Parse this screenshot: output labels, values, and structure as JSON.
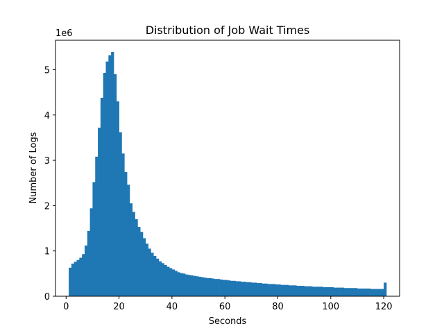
{
  "chart_data": {
    "type": "bar",
    "title": "Distribution of Job Wait Times",
    "xlabel": "Seconds",
    "ylabel": "Number of Logs",
    "y_offset_text": "1e6",
    "xlim": [
      -4,
      126
    ],
    "ylim": [
      0,
      5.65
    ],
    "y_scale_multiplier": 1000000,
    "x_ticks": [
      0,
      20,
      40,
      60,
      80,
      100,
      120
    ],
    "y_ticks": [
      0,
      1,
      2,
      3,
      4,
      5
    ],
    "bar_color": "#1f77b4",
    "bin_start": 1,
    "bin_width": 1,
    "values_millions": [
      0.63,
      0.72,
      0.76,
      0.8,
      0.85,
      0.93,
      1.12,
      1.44,
      1.94,
      2.52,
      3.08,
      3.72,
      4.38,
      4.93,
      5.18,
      5.32,
      5.39,
      4.9,
      4.3,
      3.62,
      3.15,
      2.74,
      2.46,
      2.05,
      1.86,
      1.7,
      1.53,
      1.42,
      1.28,
      1.16,
      1.05,
      0.96,
      0.89,
      0.83,
      0.77,
      0.73,
      0.69,
      0.65,
      0.62,
      0.59,
      0.56,
      0.53,
      0.51,
      0.5,
      0.48,
      0.47,
      0.46,
      0.45,
      0.44,
      0.43,
      0.42,
      0.41,
      0.4,
      0.4,
      0.39,
      0.38,
      0.38,
      0.37,
      0.36,
      0.36,
      0.35,
      0.34,
      0.34,
      0.33,
      0.33,
      0.32,
      0.32,
      0.31,
      0.31,
      0.3,
      0.3,
      0.29,
      0.29,
      0.28,
      0.28,
      0.27,
      0.27,
      0.27,
      0.26,
      0.26,
      0.25,
      0.25,
      0.25,
      0.24,
      0.24,
      0.24,
      0.23,
      0.23,
      0.23,
      0.22,
      0.22,
      0.22,
      0.21,
      0.21,
      0.21,
      0.21,
      0.2,
      0.2,
      0.2,
      0.2,
      0.19,
      0.19,
      0.19,
      0.19,
      0.18,
      0.18,
      0.18,
      0.18,
      0.18,
      0.17,
      0.17,
      0.17,
      0.17,
      0.17,
      0.16,
      0.16,
      0.16,
      0.16,
      0.16,
      0.3
    ]
  }
}
